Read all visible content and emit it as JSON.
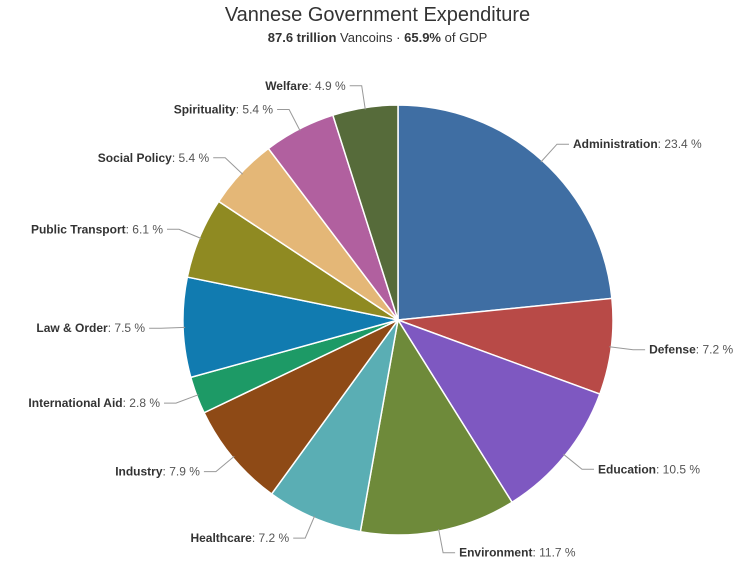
{
  "header": {
    "title": "Vannese Government Expenditure",
    "subtitle_amount": "87.6 trillion",
    "subtitle_unit": "Vancoins",
    "subtitle_sep": "·",
    "subtitle_pct": "65.9%",
    "subtitle_suffix": "of GDP"
  },
  "chart_data": {
    "type": "pie",
    "title": "Vannese Government Expenditure",
    "subtitle": "87.6 trillion Vancoins · 65.9% of GDP",
    "unit": "%",
    "slices": [
      {
        "name": "Administration",
        "value": 23.4,
        "label": "23.4 %",
        "color": "#3f6ea3"
      },
      {
        "name": "Defense",
        "value": 7.2,
        "label": "7.2 %",
        "color": "#b84a47"
      },
      {
        "name": "Education",
        "value": 10.5,
        "label": "10.5 %",
        "color": "#7e58c1"
      },
      {
        "name": "Environment",
        "value": 11.7,
        "label": "11.7 %",
        "color": "#6e8a3a"
      },
      {
        "name": "Healthcare",
        "value": 7.2,
        "label": "7.2 %",
        "color": "#5aaeb4"
      },
      {
        "name": "Industry",
        "value": 7.9,
        "label": "7.9 %",
        "color": "#8e4a16"
      },
      {
        "name": "International Aid",
        "value": 2.8,
        "label": "2.8 %",
        "color": "#1d9a66"
      },
      {
        "name": "Law & Order",
        "value": 7.5,
        "label": "7.5 %",
        "color": "#117bb0"
      },
      {
        "name": "Public Transport",
        "value": 6.1,
        "label": "6.1 %",
        "color": "#8f8a22"
      },
      {
        "name": "Social Policy",
        "value": 5.4,
        "label": "5.4 %",
        "color": "#e4b777"
      },
      {
        "name": "Spirituality",
        "value": 5.4,
        "label": "5.4 %",
        "color": "#b1609f"
      },
      {
        "name": "Welfare",
        "value": 4.9,
        "label": "4.9 %",
        "color": "#566b3a"
      }
    ]
  }
}
